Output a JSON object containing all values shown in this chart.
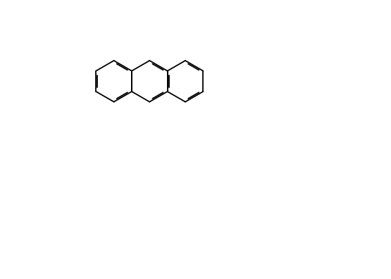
{
  "title": "",
  "bg_color": "#ffffff",
  "line_color": "#000000",
  "line_width": 1.2,
  "font_size": 7,
  "figsize": [
    5.55,
    3.96
  ],
  "dpi": 100
}
